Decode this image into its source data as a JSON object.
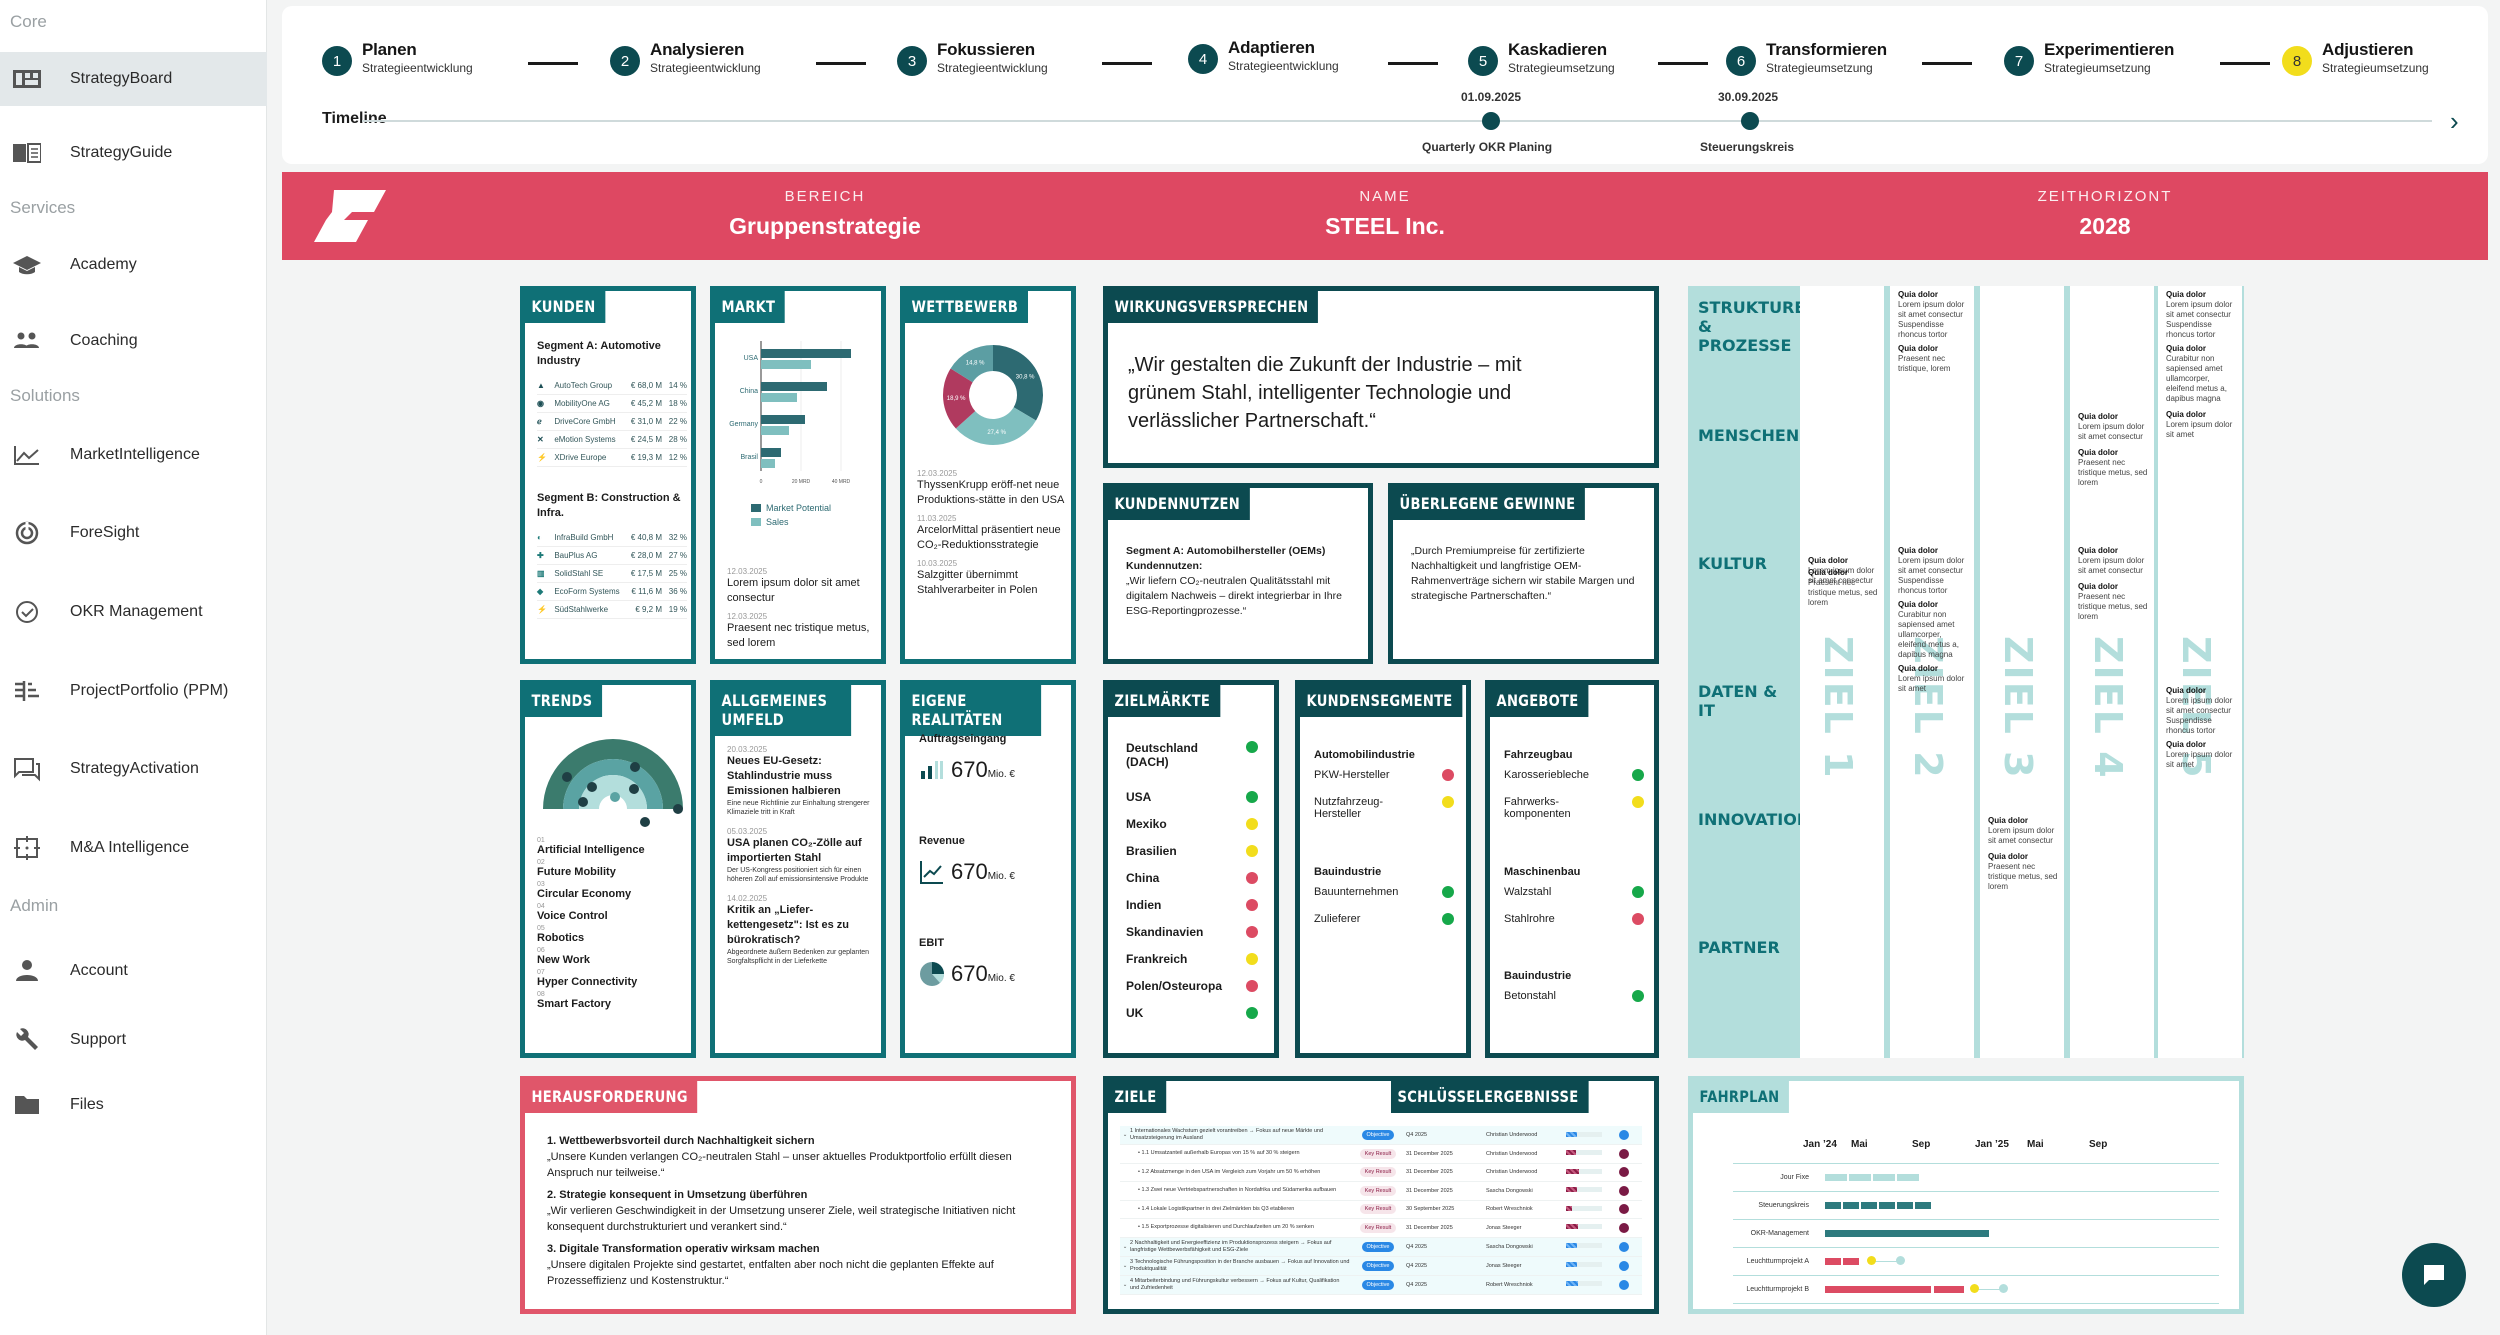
{
  "sidebar": {
    "sections": [
      {
        "label": "Core",
        "items": [
          {
            "label": "StrategyBoard",
            "icon": "board-icon",
            "active": true
          },
          {
            "label": "StrategyGuide",
            "icon": "book-icon"
          }
        ]
      },
      {
        "label": "Services",
        "items": [
          {
            "label": "Academy",
            "icon": "graduation-cap-icon"
          },
          {
            "label": "Coaching",
            "icon": "people-icon"
          }
        ]
      },
      {
        "label": "Solutions",
        "items": [
          {
            "label": "MarketIntelligence",
            "icon": "line-chart-icon"
          },
          {
            "label": "ForeSight",
            "icon": "radar-icon"
          },
          {
            "label": "OKR Management",
            "icon": "check-circle-icon"
          },
          {
            "label": "ProjectPortfolio (PPM)",
            "icon": "portfolio-icon"
          },
          {
            "label": "StrategyActivation",
            "icon": "chat-bubbles-icon"
          },
          {
            "label": "M&A Intelligence",
            "icon": "target-frame-icon"
          }
        ]
      },
      {
        "label": "Admin",
        "items": [
          {
            "label": "Account",
            "icon": "person-icon"
          },
          {
            "label": "Support",
            "icon": "wrench-icon"
          },
          {
            "label": "Files",
            "icon": "folder-icon"
          }
        ]
      }
    ]
  },
  "stepper": {
    "steps": [
      {
        "num": "1",
        "title": "Planen",
        "sub": "Strategieentwicklung"
      },
      {
        "num": "2",
        "title": "Analysieren",
        "sub": "Strategieentwicklung"
      },
      {
        "num": "3",
        "title": "Fokussieren",
        "sub": "Strategieentwicklung"
      },
      {
        "num": "4",
        "title": "Adaptieren",
        "sub": "Strategieentwicklung"
      },
      {
        "num": "5",
        "title": "Kaskadieren",
        "sub": "Strategieumsetzung"
      },
      {
        "num": "6",
        "title": "Transformieren",
        "sub": "Strategieumsetzung"
      },
      {
        "num": "7",
        "title": "Experimentieren",
        "sub": "Strategieumsetzung"
      },
      {
        "num": "8",
        "title": "Adjustieren",
        "sub": "Strategieumsetzung",
        "highlight": "#f2dd1c"
      }
    ]
  },
  "timeline": {
    "label": "Timeline",
    "events": [
      {
        "date": "01.09.2025",
        "name": "Quarterly OKR Planing"
      },
      {
        "date": "30.09.2025",
        "name": "Steuerungskreis"
      }
    ]
  },
  "banner": {
    "color": "#de4862",
    "bereich_label": "BEREICH",
    "bereich": "Gruppenstrategie",
    "name_label": "NAME",
    "name": "STEEL Inc.",
    "zeit_label": "ZEITHORIZONT",
    "zeit": "2028"
  },
  "kunden": {
    "title": "KUNDEN",
    "segA": "Segment A: Automotive Industry",
    "segA_rows": [
      {
        "name": "AutoTech Group",
        "value": "€ 68,0 M",
        "pct": "14 %"
      },
      {
        "name": "MobilityOne AG",
        "value": "€ 45,2 M",
        "pct": "18 %"
      },
      {
        "name": "DriveCore GmbH",
        "value": "€ 31,0 M",
        "pct": "22 %"
      },
      {
        "name": "eMotion Systems",
        "value": "€ 24,5 M",
        "pct": "28 %"
      },
      {
        "name": "XDrive Europe",
        "value": "€ 19,3 M",
        "pct": "12 %"
      }
    ],
    "segB": "Segment B: Construction & Infra.",
    "segB_rows": [
      {
        "name": "InfraBuild GmbH",
        "value": "€ 40,8 M",
        "pct": "32 %"
      },
      {
        "name": "BauPlus AG",
        "value": "€ 28,0 M",
        "pct": "27 %"
      },
      {
        "name": "SolidStahl SE",
        "value": "€ 17,5 M",
        "pct": "25 %"
      },
      {
        "name": "EcoForm Systems",
        "value": "€ 11,6 M",
        "pct": "36 %"
      },
      {
        "name": "SüdStahlwerke",
        "value": "€ 9,2 M",
        "pct": "19 %"
      }
    ]
  },
  "markt": {
    "title": "MARKT",
    "chart": {
      "categories": [
        "USA",
        "China",
        "Germany",
        "Brasil"
      ],
      "market_potential": [
        45,
        33,
        22,
        10
      ],
      "sales": [
        25,
        18,
        14,
        7
      ],
      "ticks": [
        "0",
        "20 MRD",
        "40 MRD"
      ]
    },
    "legend": [
      "Market Potential",
      "Sales"
    ],
    "news": [
      {
        "date": "12.03.2025",
        "text": "Lorem ipsum dolor sit amet consectur"
      },
      {
        "date": "12.03.2025",
        "text": "Praesent nec tristique metus, sed lorem"
      }
    ]
  },
  "wettbewerb": {
    "title": "WETTBEWERB",
    "donut": [
      {
        "label": "30,8 %",
        "value": 30.8,
        "color": "#2d6a72"
      },
      {
        "label": "27,4 %",
        "value": 27.4,
        "color": "#7fbfbf"
      },
      {
        "label": "18,9 %",
        "value": 18.9,
        "color": "#b03a5f"
      },
      {
        "label": "14,8 %",
        "value": 14.8,
        "color": "#5c9ea3"
      }
    ],
    "news": [
      {
        "date": "12.03.2025",
        "text": "ThyssenKrupp eröff-net neue Produktions-stätte in den USA"
      },
      {
        "date": "11.03.2025",
        "text": "ArcelorMittal präsentiert neue CO₂-Reduktionsstrategie"
      },
      {
        "date": "10.03.2025",
        "text": "Salzgitter übernimmt Stahlverarbeiter in Polen"
      }
    ]
  },
  "trends": {
    "title": "TRENDS",
    "items": [
      {
        "n": "01",
        "label": "Artificial Intelligence"
      },
      {
        "n": "02",
        "label": "Future Mobility"
      },
      {
        "n": "03",
        "label": "Circular Economy"
      },
      {
        "n": "04",
        "label": "Voice Control"
      },
      {
        "n": "05",
        "label": "Robotics"
      },
      {
        "n": "06",
        "label": "New Work"
      },
      {
        "n": "07",
        "label": "Hyper Connectivity"
      },
      {
        "n": "08",
        "label": "Smart Factory"
      }
    ]
  },
  "umfeld": {
    "title": "ALLGEMEINES UMFELD",
    "news": [
      {
        "date": "20.03.2025",
        "head": "Neues EU-Gesetz: Stahlindustrie muss Emissionen halbieren",
        "sub": "Eine neue Richtlinie zur Einhaltung strengerer Klimaziele tritt in Kraft"
      },
      {
        "date": "05.03.2025",
        "head": "USA planen CO₂-Zölle auf importierten Stahl",
        "sub": "Der US-Kongress positioniert sich für einen höheren Zoll auf emissionsintensive Produkte"
      },
      {
        "date": "14.02.2025",
        "head": "Kritik an „Liefer-kettengesetz\": Ist es zu bürokratisch?",
        "sub": "Abgeordnete äußern Bedenken zur geplanten Sorgfaltspflicht in der Lieferkette"
      }
    ]
  },
  "realitaeten": {
    "title": "EIGENE REALITÄTEN",
    "kpis": [
      {
        "label": "Auftragseingang",
        "value": "670",
        "unit": "Mio. €",
        "icon": "bar-chart-icon"
      },
      {
        "label": "Revenue",
        "value": "670",
        "unit": "Mio. €",
        "icon": "trend-up-icon"
      },
      {
        "label": "EBIT",
        "value": "670",
        "unit": "Mio. €",
        "icon": "pie-chart-icon"
      }
    ]
  },
  "wirkung": {
    "title": "WIRKUNGSVERSPRECHEN",
    "text": "„Wir gestalten die Zukunft der Industrie – mit grünem Stahl, intelligenter Technologie und verlässlicher Partnerschaft.“"
  },
  "kundennutzen": {
    "title": "KUNDENNUTZEN",
    "head": "Segment A: Automobilhersteller (OEMs) Kundennutzen:",
    "text": "„Wir liefern CO₂-neutralen Qualitätsstahl mit digitalem Nachweis – direkt integrierbar in Ihre ESG-Reportingprozesse.“"
  },
  "gewinne": {
    "title": "ÜBERLEGENE GEWINNE",
    "text": "„Durch Premiumpreise für zertifizierte Nachhaltigkeit und langfristige OEM-Rahmenverträge sichern wir stabile Margen und strategische Partnerschaften.“"
  },
  "zielmaerkte": {
    "title": "ZIELMÄRKTE",
    "items": [
      {
        "label": "Deutschland (DACH)",
        "status": "g"
      },
      {
        "label": "USA",
        "status": "g"
      },
      {
        "label": "Mexiko",
        "status": "y"
      },
      {
        "label": "Brasilien",
        "status": "y"
      },
      {
        "label": "China",
        "status": "r"
      },
      {
        "label": "Indien",
        "status": "r"
      },
      {
        "label": "Skandinavien",
        "status": "r"
      },
      {
        "label": "Frankreich",
        "status": "y"
      },
      {
        "label": "Polen/Osteuropa",
        "status": "r"
      },
      {
        "label": "UK",
        "status": "g"
      }
    ]
  },
  "kundensegmente": {
    "title": "KUNDENSEGMENTE",
    "groups": [
      {
        "head": "Automobilindustrie",
        "items": [
          {
            "label": "PKW-Hersteller",
            "status": "r"
          },
          {
            "label": "Nutzfahrzeug-Hersteller",
            "status": "y"
          }
        ]
      },
      {
        "head": "Bauindustrie",
        "items": [
          {
            "label": "Bauunternehmen",
            "status": "g"
          },
          {
            "label": "Zulieferer",
            "status": "g"
          }
        ]
      }
    ]
  },
  "angebote": {
    "title": "ANGEBOTE",
    "groups": [
      {
        "head": "Fahrzeugbau",
        "items": [
          {
            "label": "Karosseriebleche",
            "status": "g"
          },
          {
            "label": "Fahrwerks-komponenten",
            "status": "y"
          }
        ]
      },
      {
        "head": "Maschinenbau",
        "items": [
          {
            "label": "Walzstahl",
            "status": "g"
          },
          {
            "label": "Stahlrohre",
            "status": "r"
          }
        ]
      },
      {
        "head": "Bauindustrie",
        "items": [
          {
            "label": "Betonstahl",
            "status": "g"
          }
        ]
      }
    ]
  },
  "matrix": {
    "rows": [
      "STRUKTUREN & PROZESSE",
      "MENSCHEN",
      "KULTUR",
      "DATEN & IT",
      "INNOVATION",
      "PARTNER"
    ],
    "zielen": [
      "ZIEL 1",
      "ZIEL 2",
      "ZIEL 3",
      "ZIEL 4",
      "ZIEL 5"
    ],
    "head": "Quia dolor",
    "texts": {
      "a": "Lorem ipsum dolor sit amet consectur",
      "b": "Praesent nec tristique metus, sed lorem",
      "c": "Lorem ipsum dolor sit amet consectur Suspendisse rhoncus tortor",
      "d": "Praesent nec tristique, lorem",
      "e": "Curabitur non sapiensed amet ullamcorper, eleifend metus a, dapibus magna",
      "f": "Lorem ipsum dolor sit amet",
      "g": "Dolor sit amet"
    }
  },
  "herausforderung": {
    "title": "HERAUSFORDERUNG",
    "items": [
      {
        "head": "1. Wettbewerbsvorteil durch Nachhaltigkeit sichern",
        "text": "„Unsere Kunden verlangen CO₂-neutralen Stahl – unser aktuelles Produktportfolio erfüllt diesen Anspruch nur teilweise.“"
      },
      {
        "head": "2. Strategie konsequent in Umsetzung überführen",
        "text": "„Wir verlieren Geschwindigkeit in der Umsetzung unserer Ziele, weil strategische Initiativen nicht konsequent durchstrukturiert und verankert sind.“"
      },
      {
        "head": "3. Digitale Transformation operativ wirksam machen",
        "text": "„Unsere digitalen Projekte sind gestartet, entfalten aber noch nicht die geplanten Effekte auf Prozesseffizienz und Kostenstruktur.“"
      }
    ]
  },
  "okr": {
    "title_left": "ZIELE",
    "title_right": "SCHLÜSSELERGEBNISSE",
    "rows": [
      {
        "type": "obj",
        "text": "1 Internationales Wachstum gezielt vorantreiben → Fokus auf neue Märkte und Umsatzsteigerung im Ausland",
        "badge": "Objective",
        "due": "Q4 2025",
        "owner": "Christian Underwood",
        "pct": 50,
        "pct_label": "50%"
      },
      {
        "type": "kr",
        "text": "• 1.1 Umsatzanteil außerhalb Europas von 15 % auf 30 % steigern",
        "badge": "Key Result",
        "due": "31 December 2025",
        "owner": "Christian Underwood",
        "pct": 45,
        "pct_label": "45%"
      },
      {
        "type": "kr",
        "text": "• 1.2 Absatzmenge in den USA im Vergleich zum Vorjahr um 50 % erhöhen",
        "badge": "Key Result",
        "due": "31 December 2025",
        "owner": "Christian Underwood",
        "pct": 60,
        "pct_label": "60%"
      },
      {
        "type": "kr",
        "text": "• 1.3 Zwei neue Vertriebspartnerschaften in Nordafrika und Südamerika aufbauen",
        "badge": "Key Result",
        "due": "31 December 2025",
        "owner": "Sascha Dongowski",
        "pct": 50,
        "pct_label": "50%"
      },
      {
        "type": "kr",
        "text": "• 1.4 Lokale Logistikpartner in drei Zielmärkten bis Q3 etablieren",
        "badge": "Key Result",
        "due": "30 September 2025",
        "owner": "Robert Wreschniok",
        "pct": 30,
        "pct_label": "30%"
      },
      {
        "type": "kr",
        "text": "• 1.5 Exportprozesse digitalisieren und Durchlaufzeiten um 20 % senken",
        "badge": "Key Result",
        "due": "31 December 2025",
        "owner": "Jonas Steeger",
        "pct": 55,
        "pct_label": "55%"
      },
      {
        "type": "obj",
        "text": "2 Nachhaltigkeit und Energieeffizienz im Produktionsprozess steigern → Fokus auf langfristige Wettbewerbsfähigkeit und ESG-Ziele",
        "badge": "Objective",
        "due": "Q4 2025",
        "owner": "Sascha Dongowski",
        "pct": 52,
        "pct_label": "52%"
      },
      {
        "type": "obj",
        "text": "3 Technologische Führungsposition in der Branche ausbauen → Fokus auf Innovation und Produktqualität",
        "badge": "Objective",
        "due": "Q4 2025",
        "owner": "Jonas Steeger",
        "pct": 53,
        "pct_label": "53%"
      },
      {
        "type": "obj",
        "text": "4 Mitarbeiterbindung und Führungskultur verbessern → Fokus auf Kultur, Qualifikation und Zufriedenheit",
        "badge": "Objective",
        "due": "Q4 2025",
        "owner": "Robert Wreschniok",
        "pct": 54,
        "pct_label": "54%"
      }
    ]
  },
  "fahrplan": {
    "title": "FAHRPLAN",
    "months": [
      "Jan ’24",
      "Mai",
      "Sep",
      "Jan ’25",
      "Mai",
      "Sep"
    ],
    "rows": [
      "Jour Fixe",
      "Steuerungskreis",
      "OKR-Management",
      "Leuchtturmprojekt A",
      "Leuchtturmprojekt B"
    ]
  },
  "chat": {
    "icon": "chat-icon"
  }
}
